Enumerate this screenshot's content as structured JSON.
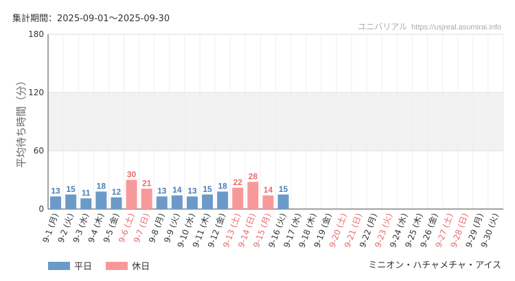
{
  "header": {
    "period": "集計期間：2025-09-01〜2025-09-30",
    "credit_brand": "ユニバリアル",
    "credit_site": "https://usjreal.asumirai.info"
  },
  "legend": {
    "weekday_label": "平日",
    "holiday_label": "休日"
  },
  "attraction": "ミニオン・ハチャメチャ・アイス",
  "colors": {
    "weekday": "#6b9ac9",
    "holiday": "#f7999b",
    "weekday_label": "#4a7db5",
    "holiday_label": "#e86a6d",
    "band": "#f2f2f2"
  },
  "chart_data": {
    "type": "bar",
    "ylabel": "平均待ち時間（分）",
    "ylim": [
      0,
      180
    ],
    "yticks": [
      0,
      60,
      120,
      180
    ],
    "shaded_band": [
      60,
      120
    ],
    "categories": [
      "9-1 (月)",
      "9-2 (火)",
      "9-3 (水)",
      "9-4 (木)",
      "9-5 (金)",
      "9-6 (土)",
      "9-7 (日)",
      "9-8 (月)",
      "9-9 (火)",
      "9-10 (水)",
      "9-11 (木)",
      "9-12 (金)",
      "9-13 (土)",
      "9-14 (日)",
      "9-15 (月)",
      "9-16 (火)",
      "9-17 (水)",
      "9-18 (木)",
      "9-19 (金)",
      "9-20 (土)",
      "9-21 (日)",
      "9-22 (月)",
      "9-23 (火)",
      "9-24 (水)",
      "9-25 (木)",
      "9-26 (金)",
      "9-27 (土)",
      "9-28 (日)",
      "9-29 (月)",
      "9-30 (火)"
    ],
    "values": [
      13,
      15,
      11,
      18,
      12,
      30,
      21,
      13,
      14,
      13,
      15,
      18,
      22,
      28,
      14,
      15,
      null,
      null,
      null,
      null,
      null,
      null,
      null,
      null,
      null,
      null,
      null,
      null,
      null,
      null
    ],
    "holiday": [
      false,
      false,
      false,
      false,
      false,
      true,
      true,
      false,
      false,
      false,
      false,
      false,
      true,
      true,
      true,
      false,
      false,
      false,
      false,
      true,
      true,
      false,
      true,
      false,
      false,
      false,
      true,
      true,
      false,
      false
    ],
    "series": [
      {
        "name": "平日"
      },
      {
        "name": "休日"
      }
    ]
  }
}
